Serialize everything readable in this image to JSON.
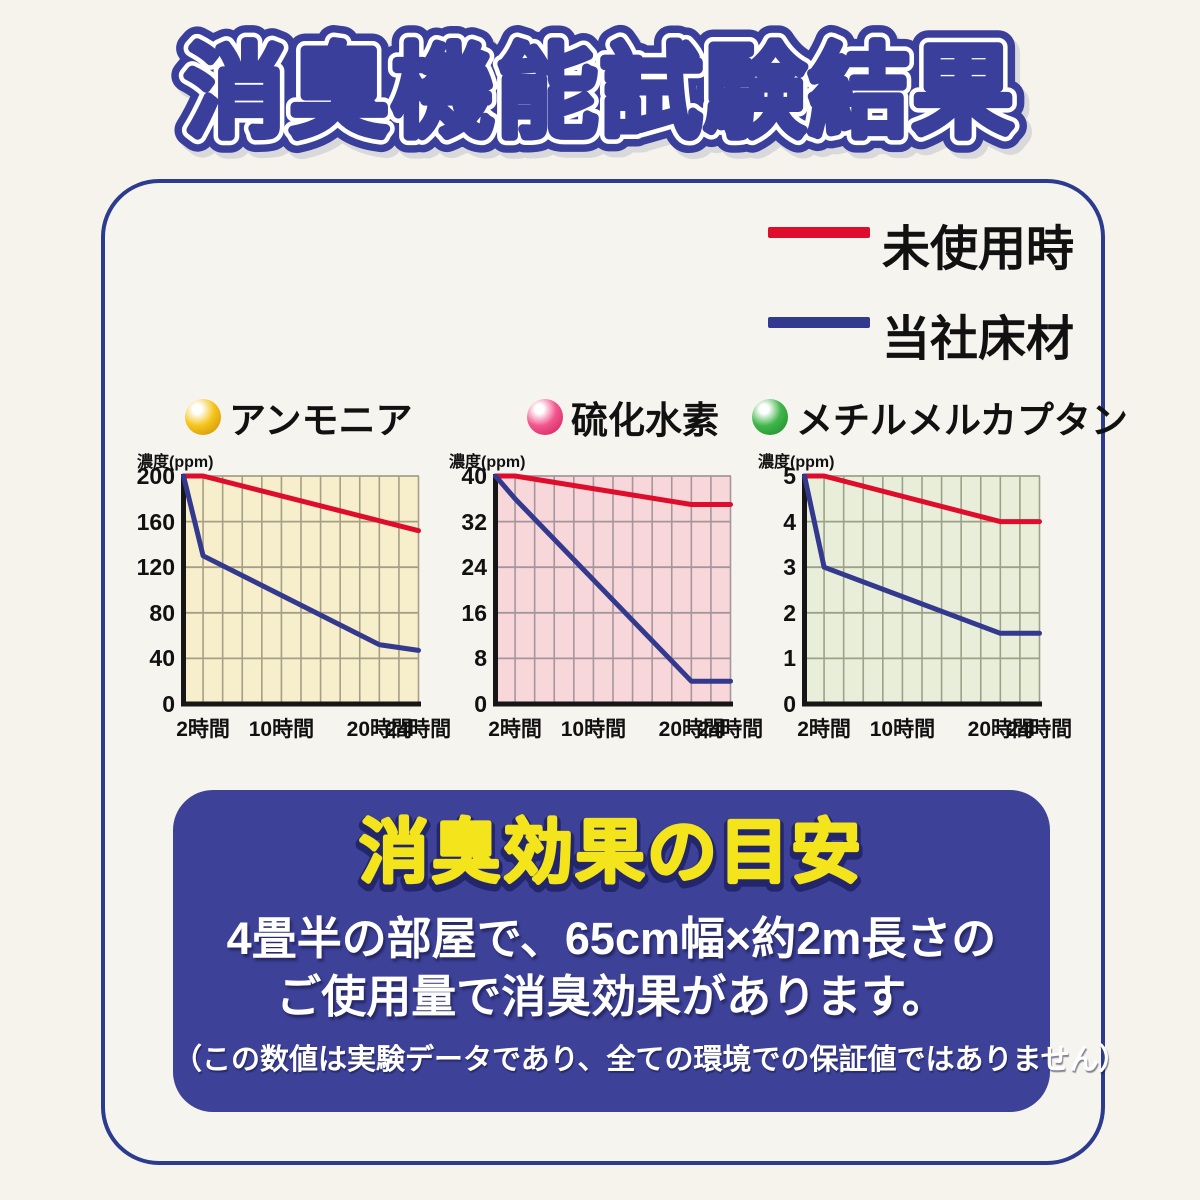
{
  "title": "消臭機能試験結果",
  "legend": {
    "items": [
      {
        "label": "未使用時",
        "color": "#df0d2c"
      },
      {
        "label": "当社床材",
        "color": "#33398d"
      }
    ]
  },
  "chart_data": [
    {
      "type": "line",
      "title": "アンモニア",
      "dot_color": "#f5c51d",
      "dot_dark": "#c98f00",
      "bg": "#f7eecb",
      "grid_color": "#a59f86",
      "ylabel": "濃度(ppm)",
      "yticks": [
        200,
        160,
        120,
        80,
        40,
        0
      ],
      "ylim": [
        0,
        200
      ],
      "xlim": [
        0,
        24
      ],
      "grid_hours_step": 2,
      "xticks": [
        {
          "hour": 2,
          "label": "2時間"
        },
        {
          "hour": 10,
          "label": "10時間"
        },
        {
          "hour": 20,
          "label": "20時間"
        },
        {
          "hour": 24,
          "label": "24時間"
        }
      ],
      "series": [
        {
          "name": "未使用時",
          "color": "#df0d2c",
          "points": [
            [
              0,
              200
            ],
            [
              2,
              200
            ],
            [
              24,
              152
            ]
          ]
        },
        {
          "name": "当社床材",
          "color": "#33398d",
          "points": [
            [
              0,
              200
            ],
            [
              2,
              130
            ],
            [
              20,
              52
            ],
            [
              24,
              47
            ]
          ]
        }
      ]
    },
    {
      "type": "line",
      "title": "硫化水素",
      "dot_color": "#f2578e",
      "dot_dark": "#d01d5e",
      "bg": "#f8d7da",
      "grid_color": "#a5969c",
      "ylabel": "濃度(ppm)",
      "yticks": [
        40,
        32,
        24,
        16,
        8,
        0
      ],
      "ylim": [
        0,
        40
      ],
      "xlim": [
        0,
        24
      ],
      "grid_hours_step": 2,
      "xticks": [
        {
          "hour": 2,
          "label": "2時間"
        },
        {
          "hour": 10,
          "label": "10時間"
        },
        {
          "hour": 20,
          "label": "20時間"
        },
        {
          "hour": 24,
          "label": "24時間"
        }
      ],
      "series": [
        {
          "name": "未使用時",
          "color": "#df0d2c",
          "points": [
            [
              0,
              40
            ],
            [
              2,
              40
            ],
            [
              20,
              35
            ],
            [
              24,
              35
            ]
          ]
        },
        {
          "name": "当社床材",
          "color": "#33398d",
          "points": [
            [
              0,
              40
            ],
            [
              2,
              36
            ],
            [
              20,
              4
            ],
            [
              24,
              4
            ]
          ]
        }
      ]
    },
    {
      "type": "line",
      "title": "メチルメルカプタン",
      "dot_color": "#41b54a",
      "dot_dark": "#1d8a2a",
      "bg": "#e9eeda",
      "grid_color": "#9ba287",
      "ylabel": "濃度(ppm)",
      "yticks": [
        5,
        4,
        3,
        2,
        1,
        0
      ],
      "ylim": [
        0,
        5
      ],
      "xlim": [
        0,
        24
      ],
      "grid_hours_step": 2,
      "xticks": [
        {
          "hour": 2,
          "label": "2時間"
        },
        {
          "hour": 10,
          "label": "10時間"
        },
        {
          "hour": 20,
          "label": "20時間"
        },
        {
          "hour": 24,
          "label": "24時間"
        }
      ],
      "series": [
        {
          "name": "未使用時",
          "color": "#df0d2c",
          "points": [
            [
              0,
              5
            ],
            [
              2,
              5
            ],
            [
              20,
              4
            ],
            [
              24,
              4
            ]
          ]
        },
        {
          "name": "当社床材",
          "color": "#33398d",
          "points": [
            [
              0,
              5
            ],
            [
              2,
              3
            ],
            [
              20,
              1.55
            ],
            [
              24,
              1.55
            ]
          ]
        }
      ]
    }
  ],
  "panel": {
    "heading": "消臭効果の目安",
    "line1": "4畳半の部屋で、65cm幅×約2m長さの",
    "line2": "ご使用量で消臭効果があります。",
    "note": "（この数値は実験データであり、全ての環境での保証値ではありません）"
  },
  "colors": {
    "accent_navy": "#3a3f9b",
    "panel_bg": "#3d4197",
    "heading_yellow": "#f3e41c",
    "line_red": "#df0d2c",
    "line_blue": "#33398d"
  }
}
